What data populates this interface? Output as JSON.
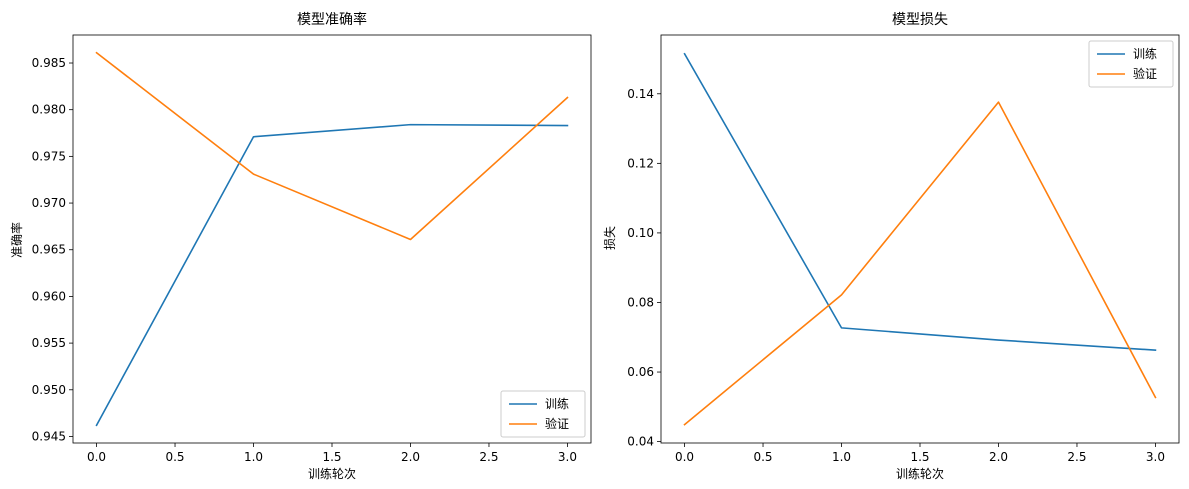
{
  "chart_data": [
    {
      "type": "line",
      "title": "模型准确率",
      "xlabel": "训练轮次",
      "ylabel": "准确率",
      "x": [
        0,
        1,
        2,
        3
      ],
      "xlim": [
        -0.15,
        3.15
      ],
      "ylim": [
        0.9443,
        0.988
      ],
      "xticks": [
        0.0,
        0.5,
        1.0,
        1.5,
        2.0,
        2.5,
        3.0
      ],
      "xtick_labels": [
        "0.0",
        "0.5",
        "1.0",
        "1.5",
        "2.0",
        "2.5",
        "3.0"
      ],
      "yticks": [
        0.945,
        0.95,
        0.955,
        0.96,
        0.965,
        0.97,
        0.975,
        0.98,
        0.985
      ],
      "ytick_labels": [
        "0.945",
        "0.950",
        "0.955",
        "0.960",
        "0.965",
        "0.970",
        "0.975",
        "0.980",
        "0.985"
      ],
      "grid": false,
      "legend_position": "bottom-right",
      "series": [
        {
          "name": "训练",
          "color": "#1f77b4",
          "values": [
            0.9462,
            0.9771,
            0.9784,
            0.9783
          ]
        },
        {
          "name": "验证",
          "color": "#ff7f0e",
          "values": [
            0.9861,
            0.9731,
            0.9661,
            0.9813
          ]
        }
      ]
    },
    {
      "type": "line",
      "title": "模型损失",
      "xlabel": "训练轮次",
      "ylabel": "损失",
      "x": [
        0,
        1,
        2,
        3
      ],
      "xlim": [
        -0.15,
        3.15
      ],
      "ylim": [
        0.0396,
        0.1569
      ],
      "xticks": [
        0.0,
        0.5,
        1.0,
        1.5,
        2.0,
        2.5,
        3.0
      ],
      "xtick_labels": [
        "0.0",
        "0.5",
        "1.0",
        "1.5",
        "2.0",
        "2.5",
        "3.0"
      ],
      "yticks": [
        0.04,
        0.06,
        0.08,
        0.1,
        0.12,
        0.14
      ],
      "ytick_labels": [
        "0.04",
        "0.06",
        "0.08",
        "0.10",
        "0.12",
        "0.14"
      ],
      "grid": false,
      "legend_position": "top-right",
      "series": [
        {
          "name": "训练",
          "color": "#1f77b4",
          "values": [
            0.1515,
            0.0727,
            0.0692,
            0.0663
          ]
        },
        {
          "name": "验证",
          "color": "#ff7f0e",
          "values": [
            0.0449,
            0.0822,
            0.1376,
            0.0527
          ]
        }
      ]
    }
  ]
}
